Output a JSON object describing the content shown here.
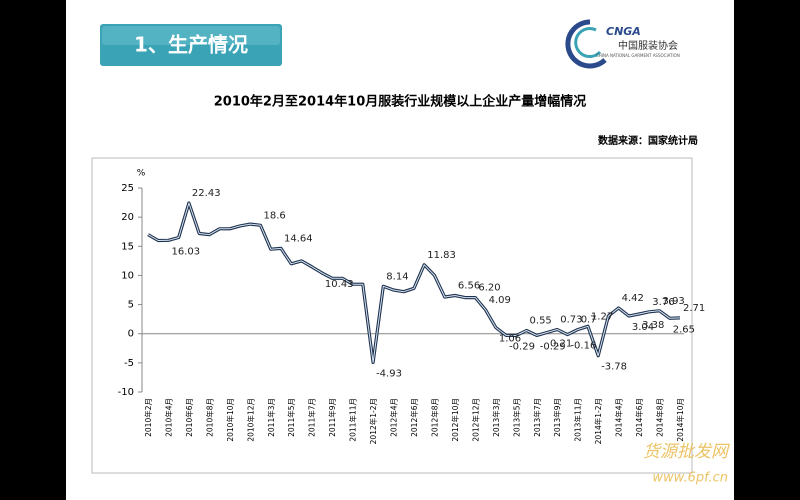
{
  "header": {
    "section": "1、生产情况",
    "logo": "CNGA",
    "org": "中国服装协会",
    "org_en": "CHINA NATIONAL GARMENT ASSOCIATION"
  },
  "chart_data": {
    "type": "line",
    "title": "2010年2月至2014年10月服装行业规模以上企业产量增幅情况",
    "source": "数据来源：国家统计局",
    "y_unit": "%",
    "categories": [
      "2010年2月",
      null,
      "2010年4月",
      null,
      "2010年6月",
      null,
      "2010年8月",
      null,
      "2010年10月",
      null,
      "2010年12月",
      null,
      "2011年3月",
      null,
      "2011年5月",
      null,
      "2011年7月",
      null,
      "2011年9月",
      null,
      "2011年11月",
      null,
      "2012年1-2月",
      null,
      "2012年4月",
      null,
      "2012年6月",
      null,
      "2012年8月",
      null,
      "2012年10月",
      null,
      "2012年12月",
      null,
      "2013年3月",
      null,
      "2013年5月",
      null,
      "2013年7月",
      null,
      "2013年9月",
      null,
      "2013年11月",
      null,
      "2014年1-2月",
      null,
      "2014年4月",
      null,
      "2014年6月",
      null,
      "2014年8月",
      null,
      "2014年10月"
    ],
    "values": [
      17,
      16,
      16.03,
      16.5,
      22.43,
      17.2,
      17,
      18,
      18,
      18.5,
      18.8,
      18.6,
      14.5,
      14.64,
      12,
      12.5,
      11.5,
      10.43,
      9.5,
      9.5,
      8.5,
      8.5,
      -4.93,
      8.14,
      7.5,
      7.2,
      7.8,
      11.83,
      10,
      6.3,
      6.56,
      6.2,
      6.2,
      4.09,
      1.06,
      -0.29,
      -0.3,
      0.55,
      -0.29,
      0.21,
      0.73,
      -0.16,
      0.7,
      1.27,
      -3.78,
      3.04,
      4.42,
      3.04,
      3.38,
      3.76,
      3.93,
      2.65,
      2.71
    ],
    "value_labels": [
      null,
      null,
      "16.03",
      null,
      "22.43",
      null,
      null,
      null,
      null,
      null,
      null,
      "18.6",
      null,
      "14.64",
      null,
      null,
      null,
      "10.43",
      null,
      null,
      null,
      null,
      "-4.93",
      "8.14",
      null,
      null,
      null,
      "11.83",
      null,
      null,
      "6.56",
      null,
      "6.20",
      "4.09",
      "1.06",
      "-0.29",
      null,
      "0.55",
      "-0.29",
      "0.21",
      "0.73",
      "-0.16",
      "0.7",
      "1.27",
      "-3.78",
      null,
      "4.42",
      "3.04",
      "3.38",
      "3.76",
      "3.93",
      "2.65",
      "2.71"
    ],
    "color": "#1f3350",
    "ylim": [
      -10,
      25
    ],
    "yticks": [
      -10,
      -5,
      0,
      5,
      10,
      15,
      20,
      25
    ],
    "grid": false
  },
  "watermark": [
    "货源批发网",
    "www.6pf.cn"
  ]
}
